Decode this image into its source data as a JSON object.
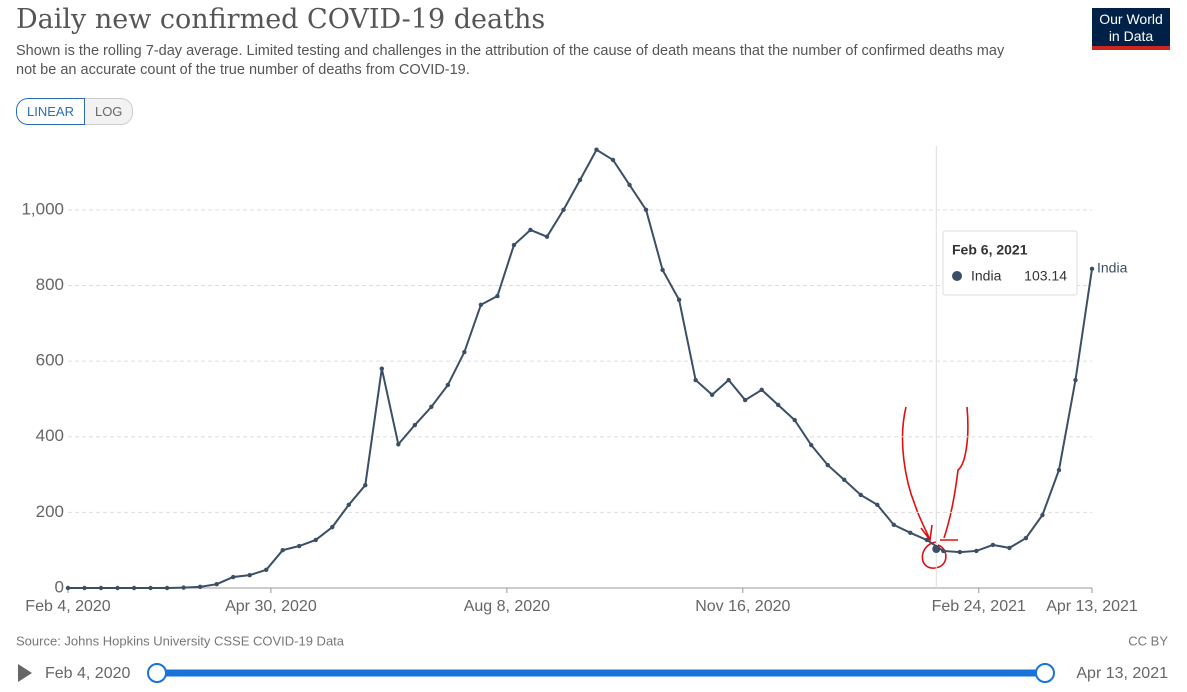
{
  "chart_data": {
    "type": "line",
    "title": "Daily new confirmed COVID-19 deaths",
    "subtitle": "Shown is the rolling 7-day average. Limited testing and challenges in the attribution of the cause of death means that the number of confirmed deaths may not be an accurate count of the true number of deaths from COVID-19.",
    "buttons": [
      "LINEAR",
      "LOG"
    ],
    "logo": [
      "Our World",
      "in Data"
    ],
    "source": "Source: Johns Hopkins University CSSE COVID-19 Data",
    "license": "CC BY",
    "timeline": {
      "start": "Feb 4, 2020",
      "end": "Apr 13, 2021"
    },
    "log_scale": false,
    "grid": true,
    "x": [
      "2020-02-04",
      "2020-02-11",
      "2020-02-18",
      "2020-02-25",
      "2020-03-03",
      "2020-03-10",
      "2020-03-17",
      "2020-03-24",
      "2020-03-31",
      "2020-04-07",
      "2020-04-14",
      "2020-04-21",
      "2020-04-28",
      "2020-05-05",
      "2020-05-12",
      "2020-05-19",
      "2020-05-26",
      "2020-06-02",
      "2020-06-09",
      "2020-06-16",
      "2020-06-23",
      "2020-06-30",
      "2020-07-07",
      "2020-07-14",
      "2020-07-21",
      "2020-07-28",
      "2020-08-04",
      "2020-08-11",
      "2020-08-18",
      "2020-08-25",
      "2020-09-01",
      "2020-09-08",
      "2020-09-15",
      "2020-09-22",
      "2020-09-29",
      "2020-10-06",
      "2020-10-13",
      "2020-10-20",
      "2020-10-27",
      "2020-11-03",
      "2020-11-10",
      "2020-11-17",
      "2020-11-24",
      "2020-12-01",
      "2020-12-08",
      "2020-12-15",
      "2020-12-22",
      "2020-12-29",
      "2021-01-05",
      "2021-01-12",
      "2021-01-19",
      "2021-01-26",
      "2021-02-02",
      "2021-02-09",
      "2021-02-16",
      "2021-02-23",
      "2021-03-02",
      "2021-03-09",
      "2021-03-16",
      "2021-03-23",
      "2021-03-30",
      "2021-04-06",
      "2021-04-13"
    ],
    "series": [
      {
        "name": "India",
        "color": "#3b4f66",
        "values": [
          0,
          0,
          0,
          0,
          0,
          0,
          0,
          1,
          3,
          10,
          29,
          34,
          48,
          100,
          111,
          127,
          161,
          220,
          272,
          580,
          380,
          431,
          479,
          537,
          624,
          749,
          772,
          907,
          947,
          929,
          1000,
          1079,
          1159,
          1132,
          1066,
          1000,
          841,
          762,
          550,
          511,
          550,
          497,
          524,
          484,
          444,
          378,
          325,
          286,
          246,
          220,
          167,
          146,
          127,
          98,
          95,
          98,
          114,
          106,
          132,
          193,
          312,
          550,
          844
        ]
      }
    ],
    "xlim": [
      "2020-02-04",
      "2021-04-13"
    ],
    "xticks": [
      {
        "value": "2020-02-04",
        "label": "Feb 4, 2020"
      },
      {
        "value": "2020-04-30",
        "label": "Apr 30, 2020"
      },
      {
        "value": "2020-08-08",
        "label": "Aug 8, 2020"
      },
      {
        "value": "2020-11-16",
        "label": "Nov 16, 2020"
      },
      {
        "value": "2021-02-24",
        "label": "Feb 24, 2021"
      },
      {
        "value": "2021-04-13",
        "label": "Apr 13, 2021"
      }
    ],
    "ylim": [
      0,
      1190
    ],
    "yticks": [
      0,
      200,
      400,
      600,
      800,
      {
        "value": 1000,
        "label": "1,000"
      }
    ],
    "tooltip": {
      "date": "Feb 6, 2021",
      "x": "2021-02-06",
      "series": "India",
      "value": 103.14
    }
  }
}
